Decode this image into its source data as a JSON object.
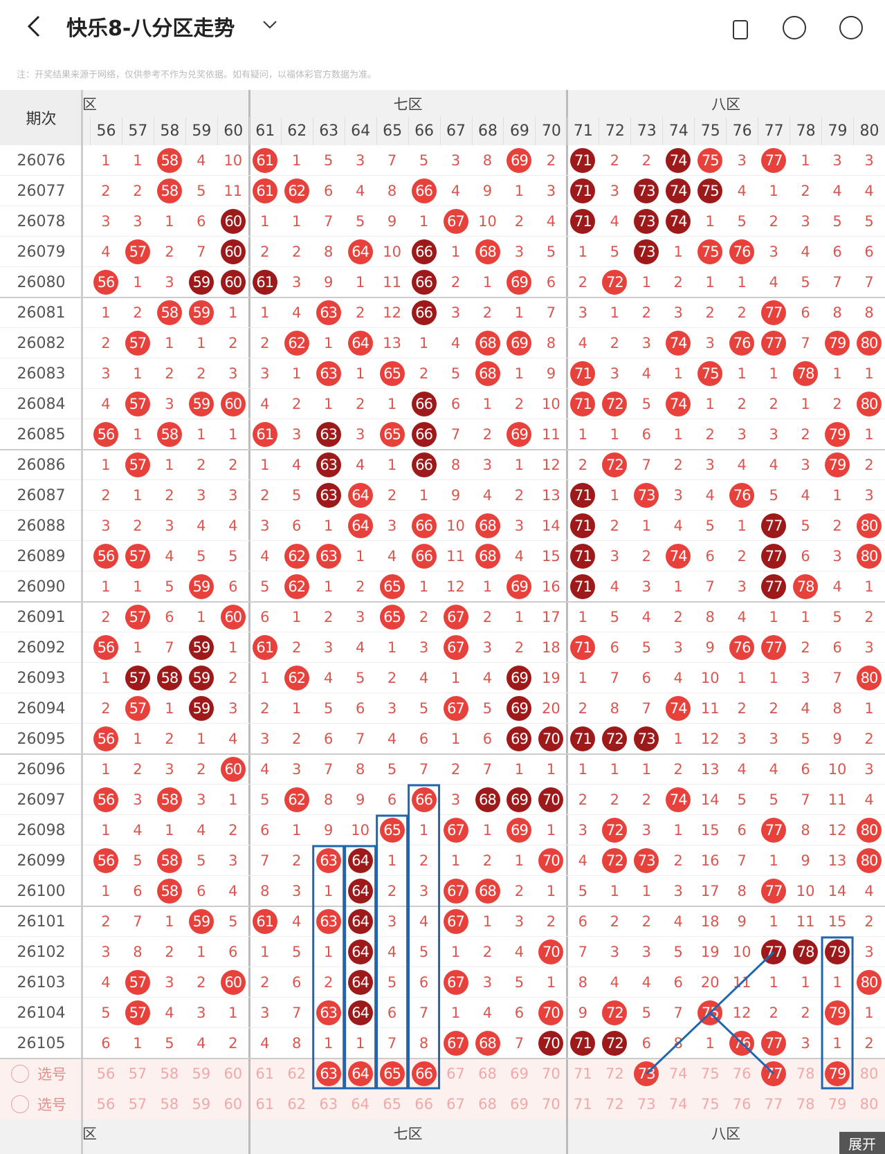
{
  "header": {
    "title": "快乐8-八分区走势",
    "note": "注：开奖结果来源于网络，仅供参考不作为兑奖依据。如有疑问，以福体彩官方数据为准。"
  },
  "table": {
    "issue_header": "期次",
    "zones": [
      {
        "label": "区",
        "span": 5
      },
      {
        "label": "七区",
        "span": 10
      },
      {
        "label": "八区",
        "span": 10
      }
    ],
    "columns": [
      56,
      57,
      58,
      59,
      60,
      61,
      62,
      63,
      64,
      65,
      66,
      67,
      68,
      69,
      70,
      71,
      72,
      73,
      74,
      75,
      76,
      77,
      78,
      79,
      80
    ],
    "rows": [
      {
        "issue": "26076",
        "values": [
          1,
          1,
          58,
          4,
          10,
          61,
          1,
          5,
          3,
          7,
          5,
          3,
          8,
          69,
          2,
          71,
          2,
          2,
          74,
          75,
          3,
          77,
          1,
          3,
          3
        ],
        "dark": [
          71,
          74
        ]
      },
      {
        "issue": "26077",
        "values": [
          2,
          2,
          58,
          5,
          11,
          61,
          62,
          6,
          4,
          8,
          66,
          4,
          9,
          1,
          3,
          71,
          3,
          73,
          74,
          75,
          4,
          1,
          2,
          4,
          4
        ],
        "dark": [
          71,
          73,
          74,
          75
        ]
      },
      {
        "issue": "26078",
        "values": [
          3,
          3,
          1,
          6,
          60,
          1,
          1,
          7,
          5,
          9,
          1,
          67,
          10,
          2,
          4,
          71,
          4,
          73,
          74,
          1,
          5,
          2,
          3,
          5,
          5
        ],
        "dark": [
          60,
          71,
          73,
          74
        ]
      },
      {
        "issue": "26079",
        "values": [
          4,
          57,
          2,
          7,
          60,
          2,
          2,
          8,
          64,
          10,
          66,
          1,
          68,
          3,
          5,
          1,
          5,
          73,
          1,
          75,
          76,
          3,
          4,
          6,
          6
        ],
        "dark": [
          60,
          66,
          73
        ]
      },
      {
        "issue": "26080",
        "values": [
          56,
          1,
          3,
          59,
          60,
          61,
          3,
          9,
          1,
          11,
          66,
          2,
          1,
          69,
          6,
          2,
          72,
          1,
          2,
          1,
          1,
          4,
          5,
          7,
          7
        ],
        "dark": [
          59,
          60,
          61,
          66
        ]
      },
      {
        "issue": "26081",
        "values": [
          1,
          2,
          58,
          59,
          1,
          1,
          4,
          63,
          2,
          12,
          66,
          3,
          2,
          1,
          7,
          3,
          1,
          2,
          3,
          2,
          2,
          77,
          6,
          8,
          8
        ],
        "dark": [
          66
        ]
      },
      {
        "issue": "26082",
        "values": [
          2,
          57,
          1,
          1,
          2,
          2,
          62,
          1,
          64,
          13,
          1,
          4,
          68,
          69,
          8,
          4,
          2,
          3,
          74,
          3,
          76,
          77,
          7,
          79,
          80
        ],
        "dark": []
      },
      {
        "issue": "26083",
        "values": [
          3,
          1,
          2,
          2,
          3,
          3,
          1,
          63,
          1,
          65,
          2,
          5,
          68,
          1,
          9,
          71,
          3,
          4,
          1,
          75,
          1,
          1,
          78,
          1,
          1
        ],
        "dark": []
      },
      {
        "issue": "26084",
        "values": [
          4,
          57,
          3,
          59,
          60,
          4,
          2,
          1,
          2,
          1,
          66,
          6,
          1,
          2,
          10,
          71,
          72,
          5,
          74,
          1,
          2,
          2,
          1,
          2,
          80
        ],
        "dark": [
          66
        ]
      },
      {
        "issue": "26085",
        "values": [
          56,
          1,
          58,
          1,
          1,
          61,
          3,
          63,
          3,
          65,
          66,
          7,
          2,
          69,
          11,
          1,
          1,
          6,
          1,
          2,
          3,
          3,
          2,
          79,
          1
        ],
        "dark": [
          63,
          66
        ]
      },
      {
        "issue": "26086",
        "values": [
          1,
          57,
          1,
          2,
          2,
          1,
          4,
          63,
          4,
          1,
          66,
          8,
          3,
          1,
          12,
          2,
          72,
          7,
          2,
          3,
          4,
          4,
          3,
          79,
          2
        ],
        "dark": [
          63,
          66
        ]
      },
      {
        "issue": "26087",
        "values": [
          2,
          1,
          2,
          3,
          3,
          2,
          5,
          63,
          64,
          2,
          1,
          9,
          4,
          2,
          13,
          71,
          1,
          73,
          3,
          4,
          76,
          5,
          4,
          1,
          3
        ],
        "dark": [
          63,
          71
        ]
      },
      {
        "issue": "26088",
        "values": [
          3,
          2,
          3,
          4,
          4,
          3,
          6,
          1,
          64,
          3,
          66,
          10,
          68,
          3,
          14,
          71,
          2,
          1,
          4,
          5,
          1,
          77,
          5,
          2,
          80
        ],
        "dark": [
          71,
          77
        ]
      },
      {
        "issue": "26089",
        "values": [
          56,
          57,
          4,
          5,
          5,
          4,
          62,
          63,
          1,
          4,
          66,
          11,
          68,
          4,
          15,
          71,
          3,
          2,
          74,
          6,
          2,
          77,
          6,
          3,
          80
        ],
        "dark": [
          71,
          77
        ]
      },
      {
        "issue": "26090",
        "values": [
          1,
          1,
          5,
          59,
          6,
          5,
          62,
          1,
          2,
          65,
          1,
          12,
          1,
          69,
          16,
          71,
          4,
          3,
          1,
          7,
          3,
          77,
          78,
          4,
          1
        ],
        "dark": [
          71,
          77
        ]
      },
      {
        "issue": "26091",
        "values": [
          2,
          57,
          6,
          1,
          60,
          6,
          1,
          2,
          3,
          65,
          2,
          67,
          2,
          1,
          17,
          1,
          5,
          4,
          2,
          8,
          4,
          1,
          1,
          5,
          2
        ],
        "dark": []
      },
      {
        "issue": "26092",
        "values": [
          56,
          1,
          7,
          59,
          1,
          61,
          2,
          3,
          4,
          1,
          3,
          67,
          3,
          2,
          18,
          71,
          6,
          5,
          3,
          9,
          76,
          77,
          2,
          6,
          3
        ],
        "dark": [
          59
        ]
      },
      {
        "issue": "26093",
        "values": [
          1,
          57,
          58,
          59,
          2,
          1,
          62,
          4,
          5,
          2,
          4,
          1,
          4,
          69,
          19,
          1,
          7,
          6,
          4,
          10,
          1,
          1,
          3,
          7,
          80
        ],
        "dark": [
          57,
          58,
          59,
          69
        ]
      },
      {
        "issue": "26094",
        "values": [
          2,
          57,
          1,
          59,
          3,
          2,
          1,
          5,
          6,
          3,
          5,
          67,
          5,
          69,
          20,
          2,
          8,
          7,
          74,
          11,
          2,
          2,
          4,
          8,
          1
        ],
        "dark": [
          59,
          69
        ]
      },
      {
        "issue": "26095",
        "values": [
          56,
          1,
          2,
          1,
          4,
          3,
          2,
          6,
          7,
          4,
          6,
          1,
          6,
          69,
          70,
          71,
          72,
          73,
          1,
          12,
          3,
          3,
          5,
          9,
          2
        ],
        "dark": [
          69,
          70,
          71,
          72,
          73
        ]
      },
      {
        "issue": "26096",
        "values": [
          1,
          2,
          3,
          2,
          60,
          4,
          3,
          7,
          8,
          5,
          7,
          2,
          7,
          1,
          1,
          1,
          1,
          1,
          2,
          13,
          4,
          4,
          6,
          10,
          3
        ],
        "dark": []
      },
      {
        "issue": "26097",
        "values": [
          56,
          3,
          58,
          3,
          1,
          5,
          62,
          8,
          9,
          6,
          66,
          3,
          68,
          69,
          70,
          2,
          2,
          2,
          74,
          14,
          5,
          5,
          7,
          11,
          4
        ],
        "dark": [
          68,
          69,
          70
        ]
      },
      {
        "issue": "26098",
        "values": [
          1,
          4,
          1,
          4,
          2,
          6,
          1,
          9,
          10,
          65,
          1,
          67,
          1,
          69,
          1,
          3,
          72,
          3,
          1,
          15,
          6,
          77,
          8,
          12,
          80
        ],
        "dark": []
      },
      {
        "issue": "26099",
        "values": [
          56,
          5,
          58,
          5,
          3,
          7,
          2,
          63,
          64,
          1,
          2,
          1,
          2,
          1,
          70,
          4,
          72,
          73,
          2,
          16,
          7,
          1,
          9,
          13,
          80
        ],
        "dark": [
          64
        ]
      },
      {
        "issue": "26100",
        "values": [
          1,
          6,
          58,
          6,
          4,
          8,
          3,
          1,
          64,
          2,
          3,
          67,
          68,
          2,
          1,
          5,
          1,
          1,
          3,
          17,
          8,
          77,
          10,
          14,
          4
        ],
        "dark": [
          64
        ]
      },
      {
        "issue": "26101",
        "values": [
          2,
          7,
          1,
          59,
          5,
          61,
          4,
          63,
          64,
          3,
          4,
          67,
          1,
          3,
          2,
          6,
          2,
          2,
          4,
          18,
          9,
          1,
          11,
          15,
          2
        ],
        "dark": [
          64
        ]
      },
      {
        "issue": "26102",
        "values": [
          3,
          8,
          2,
          1,
          6,
          1,
          5,
          1,
          64,
          4,
          5,
          1,
          2,
          4,
          70,
          7,
          3,
          3,
          5,
          19,
          10,
          77,
          78,
          79,
          3
        ],
        "dark": [
          64,
          77,
          78,
          79
        ]
      },
      {
        "issue": "26103",
        "values": [
          4,
          57,
          3,
          2,
          60,
          2,
          6,
          2,
          64,
          5,
          6,
          67,
          3,
          5,
          1,
          8,
          4,
          4,
          6,
          20,
          11,
          1,
          1,
          1,
          80
        ],
        "dark": [
          64
        ]
      },
      {
        "issue": "26104",
        "values": [
          5,
          57,
          4,
          3,
          1,
          3,
          7,
          63,
          64,
          6,
          7,
          1,
          4,
          6,
          70,
          9,
          72,
          5,
          7,
          75,
          12,
          2,
          2,
          79,
          1
        ],
        "dark": [
          64
        ]
      },
      {
        "issue": "26105",
        "values": [
          6,
          1,
          5,
          4,
          2,
          4,
          8,
          1,
          1,
          7,
          8,
          67,
          68,
          7,
          70,
          71,
          72,
          6,
          8,
          1,
          76,
          77,
          3,
          1,
          2
        ],
        "dark": [
          70,
          71,
          72
        ]
      }
    ],
    "pick_rows": [
      {
        "label": "选号",
        "selected": [
          63,
          64,
          65,
          66,
          73,
          77,
          79
        ]
      },
      {
        "label": "选号",
        "selected": []
      }
    ],
    "expand": "展开"
  }
}
